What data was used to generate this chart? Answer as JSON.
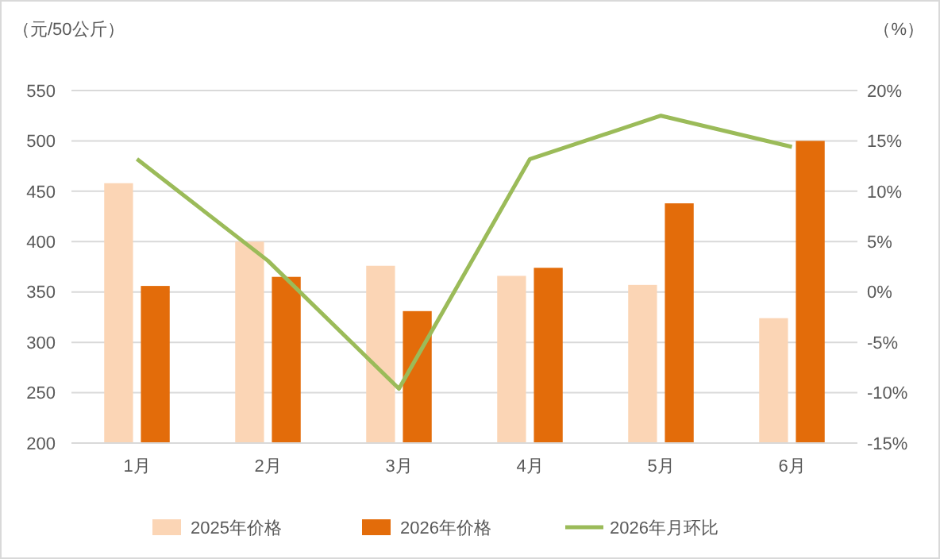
{
  "chart_data": {
    "type": "bar",
    "ylabel": "（元/50公斤）",
    "y2label": "（%）",
    "categories": [
      "1月",
      "2月",
      "3月",
      "4月",
      "5月",
      "6月"
    ],
    "series": [
      {
        "name": "2025年价格",
        "color": "#fbd5b5",
        "values": [
          458,
          400,
          376,
          366,
          357,
          324
        ]
      },
      {
        "name": "2026年价格",
        "color": "#e36c0a",
        "values": [
          356,
          365,
          331,
          374,
          438,
          500
        ]
      },
      {
        "name": "2026年月环比",
        "type": "line",
        "axis": "y2",
        "color": "#9bbb59",
        "values": [
          13.2,
          3.1,
          -9.6,
          13.2,
          17.5,
          14.4
        ]
      }
    ],
    "ylim": [
      200,
      550
    ],
    "yticks": [
      200,
      250,
      300,
      350,
      400,
      450,
      500,
      550
    ],
    "y2lim": [
      -15,
      20
    ],
    "y2ticks": [
      {
        "value": -15,
        "label": "-15%"
      },
      {
        "value": -10,
        "label": "-10%"
      },
      {
        "value": -5,
        "label": "-5%"
      },
      {
        "value": 0,
        "label": "0%"
      },
      {
        "value": 5,
        "label": "5%"
      },
      {
        "value": 10,
        "label": "10%"
      },
      {
        "value": 15,
        "label": "15%"
      },
      {
        "value": 20,
        "label": "20%"
      }
    ],
    "grid": "y",
    "legend": "bottom",
    "marker": "none",
    "line_style": "solid"
  }
}
